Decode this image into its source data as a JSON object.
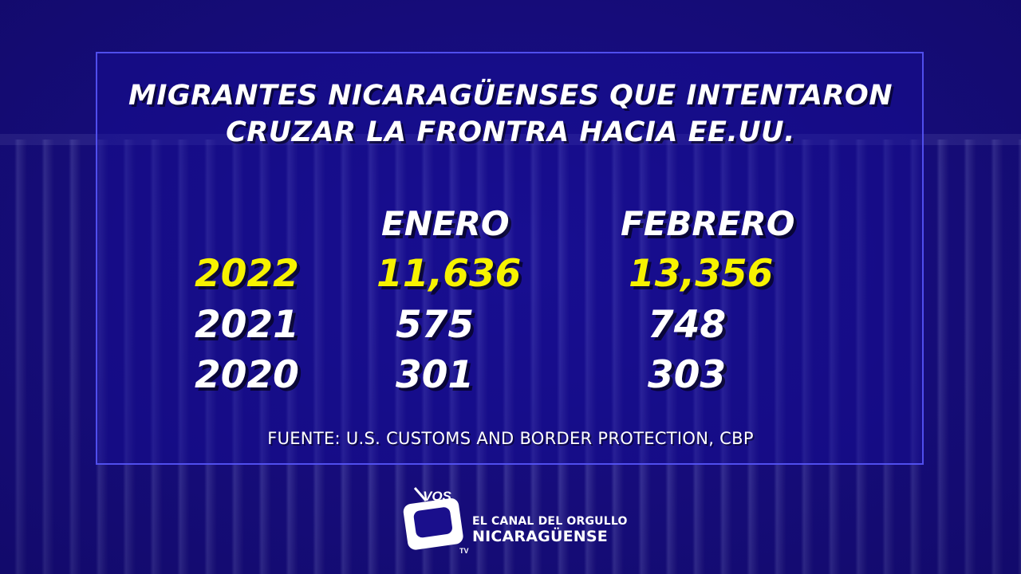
{
  "title_line1": "MIGRANTES NICARAGÜENSES QUE INTENTARON",
  "title_line2": "CRUZAR LA FRONTRA HACIA EE.UU.",
  "source": "FUENTE: U.S. CUSTOMS AND BORDER PROTECTION, CBP",
  "brand": {
    "logo_text": "VOS",
    "logo_sub": "TV",
    "tagline": "EL CANAL DEL ORGULLO",
    "name": "NICARAGÜENSE"
  },
  "colors": {
    "background": "#1a0f8c",
    "highlight": "#f7f200",
    "text": "#ffffff"
  },
  "chart_data": {
    "type": "table",
    "columns": [
      "ENERO",
      "FEBRERO"
    ],
    "rows": [
      {
        "label": "2022",
        "values": [
          "11,636",
          "13,356"
        ],
        "highlight": true
      },
      {
        "label": "2021",
        "values": [
          "575",
          "748"
        ],
        "highlight": false
      },
      {
        "label": "2020",
        "values": [
          "301",
          "303"
        ],
        "highlight": false
      }
    ]
  }
}
